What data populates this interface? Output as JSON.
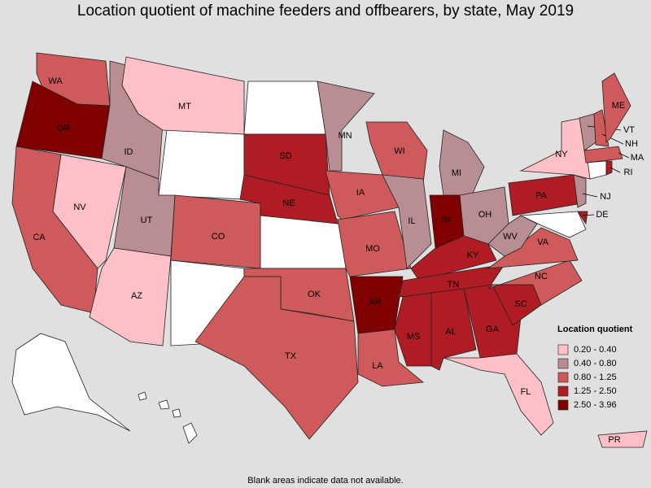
{
  "map": {
    "title": "Location quotient of machine feeders and offbearers, by state, May 2019",
    "footnote": "Blank areas indicate data not available.",
    "legend": {
      "title": "Location quotient",
      "classes": [
        {
          "label": "0.20 - 0.40",
          "color": "#ffc0c8"
        },
        {
          "label": "0.40 - 0.80",
          "color": "#b98e92"
        },
        {
          "label": "0.80 - 1.25",
          "color": "#cf5a5c"
        },
        {
          "label": "1.25 - 2.50",
          "color": "#b01c24"
        },
        {
          "label": "2.50 - 3.96",
          "color": "#800000"
        }
      ]
    },
    "states": [
      {
        "label": "WA",
        "color": "#cf5a5c"
      },
      {
        "label": "OR",
        "color": "#800000"
      },
      {
        "label": "CA",
        "color": "#cf5a5c"
      },
      {
        "label": "NV",
        "color": "#ffc0c8"
      },
      {
        "label": "ID",
        "color": "#b98e92"
      },
      {
        "label": "MT",
        "color": "#ffc0c8"
      },
      {
        "label": "UT",
        "color": "#b98e92"
      },
      {
        "label": "CO",
        "color": "#cf5a5c"
      },
      {
        "label": "AZ",
        "color": "#ffc0c8"
      },
      {
        "label": "SD",
        "color": "#b01c24"
      },
      {
        "label": "NE",
        "color": "#b01c24"
      },
      {
        "label": "OK",
        "color": "#cf5a5c"
      },
      {
        "label": "TX",
        "color": "#cf5a5c"
      },
      {
        "label": "MN",
        "color": "#b98e92"
      },
      {
        "label": "IA",
        "color": "#cf5a5c"
      },
      {
        "label": "MO",
        "color": "#cf5a5c"
      },
      {
        "label": "AR",
        "color": "#800000"
      },
      {
        "label": "LA",
        "color": "#cf5a5c"
      },
      {
        "label": "WI",
        "color": "#cf5a5c"
      },
      {
        "label": "IL",
        "color": "#b98e92"
      },
      {
        "label": "MI",
        "color": "#b98e92"
      },
      {
        "label": "IN",
        "color": "#800000"
      },
      {
        "label": "OH",
        "color": "#b98e92"
      },
      {
        "label": "KY",
        "color": "#b01c24"
      },
      {
        "label": "TN",
        "color": "#b01c24"
      },
      {
        "label": "MS",
        "color": "#b01c24"
      },
      {
        "label": "AL",
        "color": "#b01c24"
      },
      {
        "label": "GA",
        "color": "#b01c24"
      },
      {
        "label": "FL",
        "color": "#ffc0c8"
      },
      {
        "label": "SC",
        "color": "#b01c24"
      },
      {
        "label": "NC",
        "color": "#cf5a5c"
      },
      {
        "label": "VA",
        "color": "#cf5a5c"
      },
      {
        "label": "WV",
        "color": "#b98e92"
      },
      {
        "label": "PA",
        "color": "#b01c24"
      },
      {
        "label": "NY",
        "color": "#ffc0c8"
      },
      {
        "label": "NJ",
        "color": "#b98e92"
      },
      {
        "label": "DE",
        "color": "#b01c24"
      },
      {
        "label": "VT",
        "color": "#b98e92"
      },
      {
        "label": "NH",
        "color": "#cf5a5c"
      },
      {
        "label": "ME",
        "color": "#cf5a5c"
      },
      {
        "label": "MA",
        "color": "#cf5a5c"
      },
      {
        "label": "RI",
        "color": "#b01c24"
      },
      {
        "label": "PR",
        "color": "#ffc0c8"
      }
    ]
  }
}
